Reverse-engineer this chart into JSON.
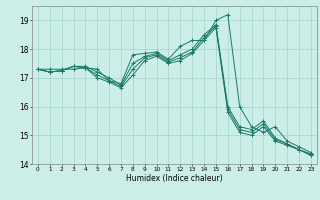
{
  "xlabel": "Humidex (Indice chaleur)",
  "background_color": "#cceee8",
  "grid_color": "#aad8d0",
  "line_color": "#1a7a6a",
  "xlim": [
    -0.5,
    23.5
  ],
  "ylim": [
    14,
    19.5
  ],
  "yticks": [
    14,
    15,
    16,
    17,
    18,
    19
  ],
  "xticks": [
    0,
    1,
    2,
    3,
    4,
    5,
    6,
    7,
    8,
    9,
    10,
    11,
    12,
    13,
    14,
    15,
    16,
    17,
    18,
    19,
    20,
    21,
    22,
    23
  ],
  "lines": [
    {
      "x": [
        0,
        1,
        2,
        3,
        4,
        5,
        6,
        7,
        8,
        9,
        10,
        11,
        12,
        13,
        14,
        15,
        16,
        17,
        18,
        19,
        20,
        21,
        22,
        23
      ],
      "y": [
        17.3,
        17.3,
        17.3,
        17.3,
        17.35,
        17.3,
        16.9,
        16.8,
        17.8,
        17.85,
        17.9,
        17.65,
        18.1,
        18.3,
        18.3,
        19.0,
        19.2,
        16.0,
        15.3,
        15.1,
        15.3,
        14.8,
        14.6,
        14.4
      ]
    },
    {
      "x": [
        0,
        1,
        2,
        3,
        4,
        5,
        6,
        7,
        8,
        9,
        10,
        11,
        12,
        13,
        14,
        15,
        16,
        17,
        18,
        19,
        20,
        21,
        22,
        23
      ],
      "y": [
        17.3,
        17.2,
        17.25,
        17.4,
        17.4,
        17.2,
        17.0,
        16.75,
        17.5,
        17.75,
        17.85,
        17.6,
        17.8,
        18.0,
        18.5,
        18.85,
        16.0,
        15.3,
        15.2,
        15.5,
        14.9,
        14.7,
        14.5,
        14.35
      ]
    },
    {
      "x": [
        0,
        1,
        2,
        3,
        4,
        5,
        6,
        7,
        8,
        9,
        10,
        11,
        12,
        13,
        14,
        15,
        16,
        17,
        18,
        19,
        20,
        21,
        22,
        23
      ],
      "y": [
        17.3,
        17.2,
        17.25,
        17.4,
        17.35,
        17.1,
        16.9,
        16.7,
        17.3,
        17.7,
        17.8,
        17.55,
        17.7,
        17.9,
        18.4,
        18.8,
        15.9,
        15.2,
        15.1,
        15.4,
        14.85,
        14.7,
        14.5,
        14.32
      ]
    },
    {
      "x": [
        0,
        1,
        2,
        3,
        4,
        5,
        6,
        7,
        8,
        9,
        10,
        11,
        12,
        13,
        14,
        15,
        16,
        17,
        18,
        19,
        20,
        21,
        22,
        23
      ],
      "y": [
        17.3,
        17.2,
        17.25,
        17.4,
        17.35,
        17.0,
        16.85,
        16.65,
        17.1,
        17.6,
        17.75,
        17.5,
        17.6,
        17.85,
        18.3,
        18.75,
        15.8,
        15.1,
        15.0,
        15.3,
        14.8,
        14.65,
        14.5,
        14.3
      ]
    }
  ]
}
